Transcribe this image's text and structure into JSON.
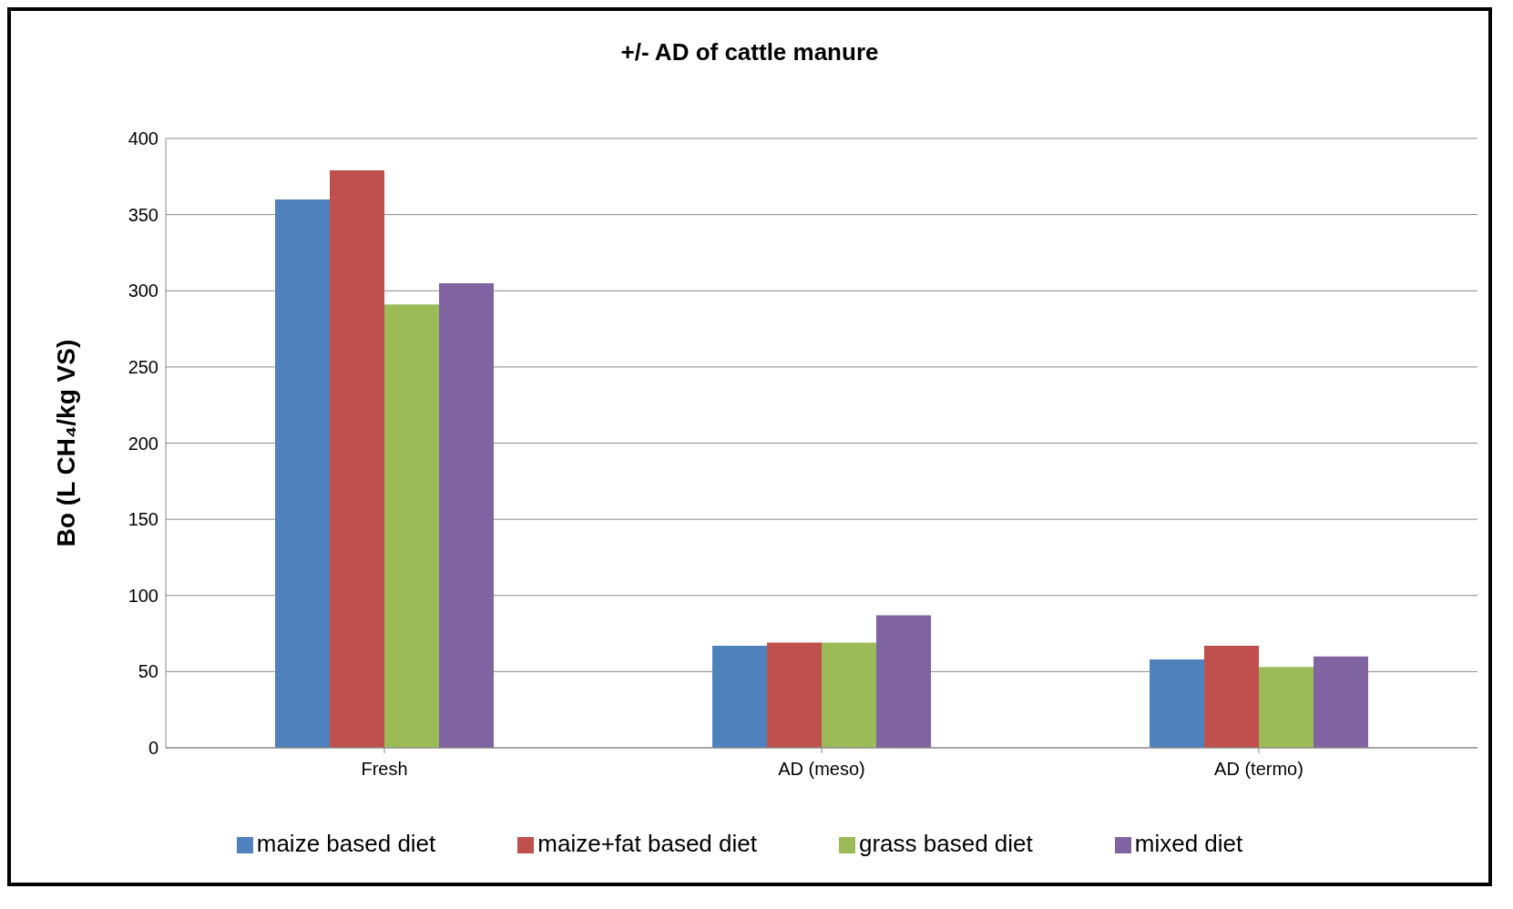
{
  "chart_data": {
    "type": "bar",
    "title": "+/- AD of cattle manure",
    "ylabel": "Bo (L CH₄/kg VS)",
    "categories": [
      "Fresh",
      "AD (meso)",
      "AD (termo)"
    ],
    "series": [
      {
        "name": "maize based diet",
        "color": "#4f81bd",
        "values": [
          360,
          67,
          58
        ]
      },
      {
        "name": "maize+fat based diet",
        "color": "#c0504d",
        "values": [
          379,
          69,
          67
        ]
      },
      {
        "name": "grass based diet",
        "color": "#9bbb59",
        "values": [
          291,
          69,
          53
        ]
      },
      {
        "name": "mixed diet",
        "color": "#8064a2",
        "values": [
          305,
          87,
          60
        ]
      }
    ],
    "ylim": [
      0,
      400
    ],
    "yticks": [
      0,
      50,
      100,
      150,
      200,
      250,
      300,
      350,
      400
    ],
    "grid": "y",
    "legend": "bottom"
  }
}
